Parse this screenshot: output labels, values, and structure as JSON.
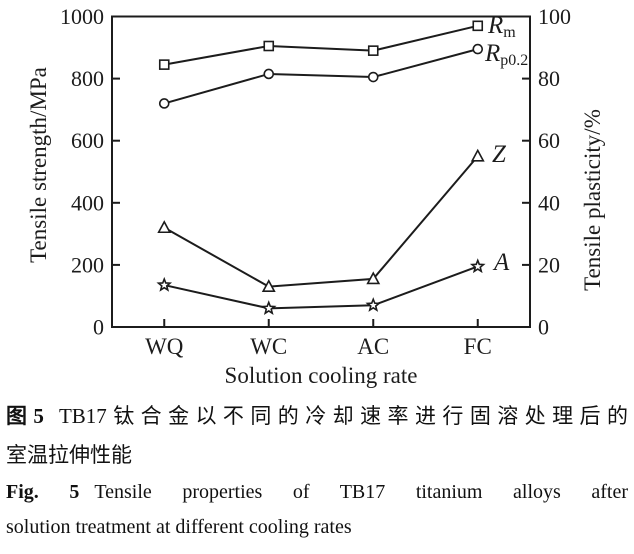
{
  "chart_data": {
    "type": "line",
    "title": "",
    "categories": [
      "WQ",
      "WC",
      "AC",
      "FC"
    ],
    "xlabel": "Solution cooling rate",
    "left_axis": {
      "label": "Tensile strength/MPa",
      "min": 0,
      "max": 1000,
      "tick_step": 200
    },
    "right_axis": {
      "label": "Tensile plasticity/%",
      "min": 0,
      "max": 100,
      "tick_step": 20
    },
    "grid": false,
    "legend_position": "inline-right-of-last-point",
    "ink_color": "#1c1c1c",
    "marker_fill": "#ffffff",
    "series": [
      {
        "name": "Rm",
        "label_main": "R",
        "label_sub": "m",
        "marker": "square",
        "axis": "left",
        "values": [
          845,
          905,
          890,
          970
        ]
      },
      {
        "name": "Rp0.2",
        "label_main": "R",
        "label_sub": "p0.2",
        "marker": "circle",
        "axis": "left",
        "values": [
          720,
          815,
          805,
          895
        ]
      },
      {
        "name": "Z",
        "label_main": "Z",
        "label_sub": "",
        "marker": "triangle",
        "axis": "right",
        "values": [
          32,
          13,
          15.5,
          55
        ]
      },
      {
        "name": "A",
        "label_main": "A",
        "label_sub": "",
        "marker": "star",
        "axis": "right",
        "values": [
          13.5,
          6,
          7,
          19.5
        ]
      }
    ]
  },
  "caption": {
    "zh": {
      "label": "图5",
      "line1": "TB17钛合金以不同的冷却速率进行固溶处理后的",
      "line2": "室温拉伸性能"
    },
    "en": {
      "label": "Fig. 5",
      "line1": "Tensile properties of TB17 titanium alloys after",
      "line2": "solution treatment at different cooling rates"
    }
  }
}
